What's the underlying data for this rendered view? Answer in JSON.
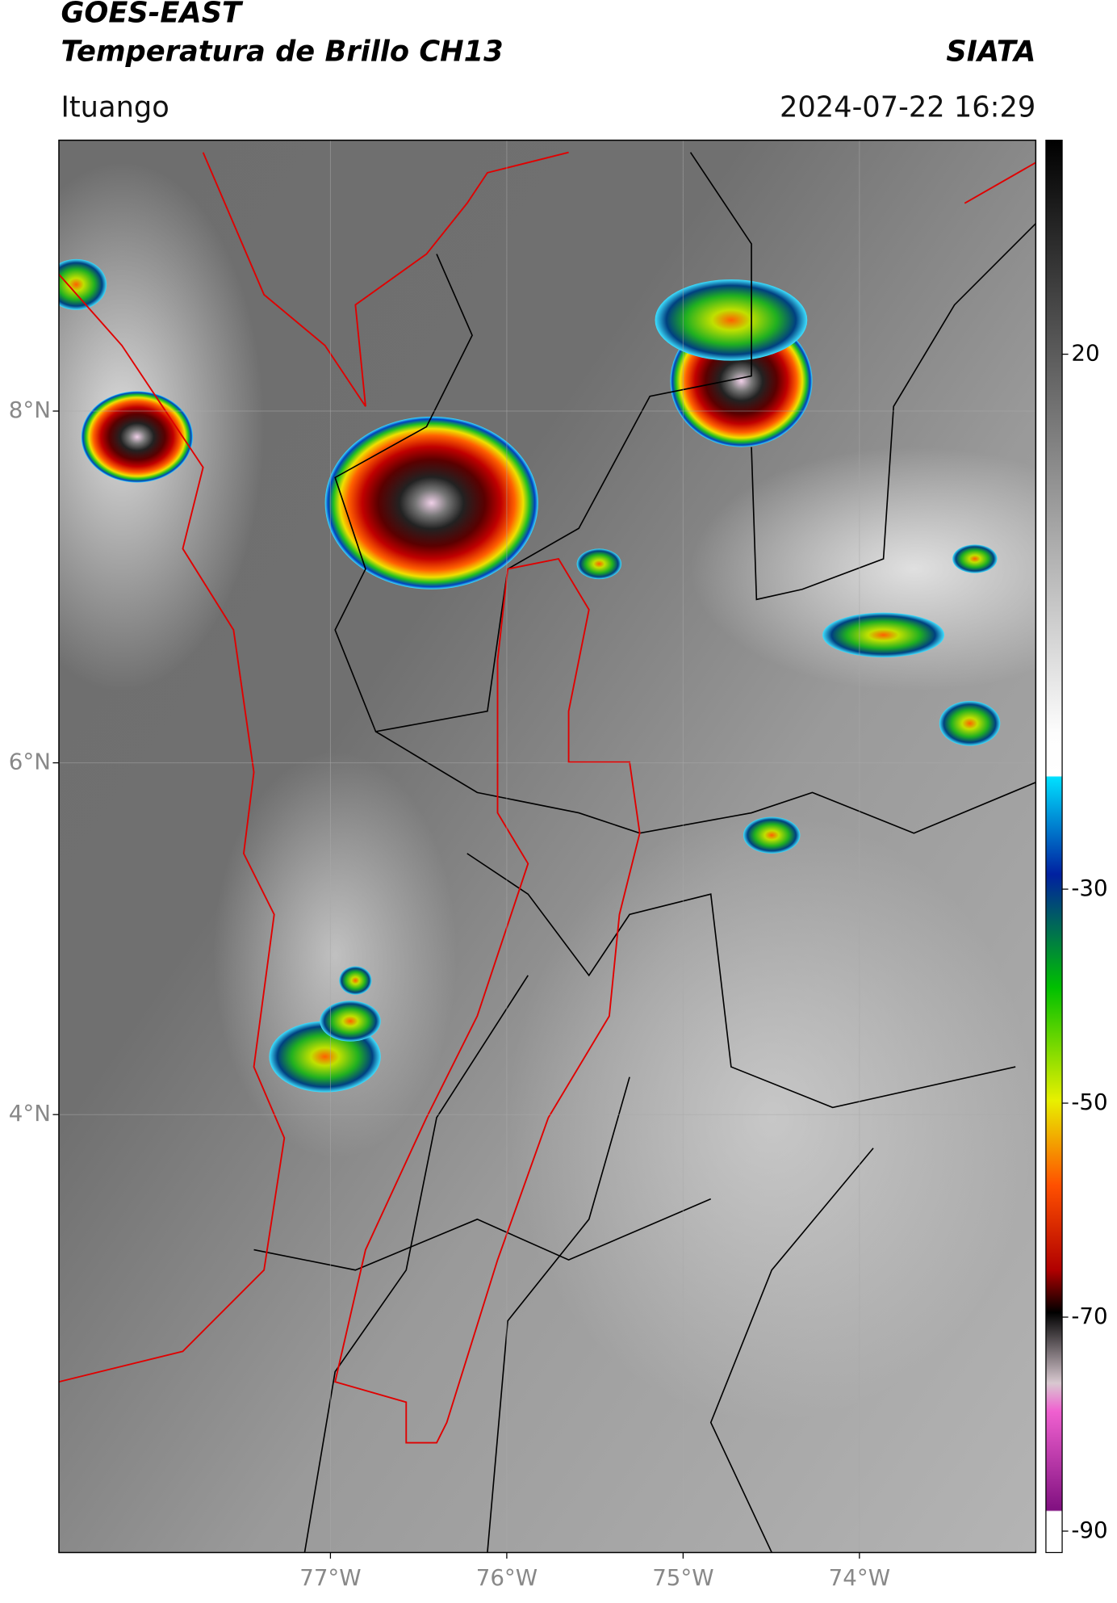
{
  "header": {
    "title": "GOES-EAST",
    "subtitle": "Temperatura de Brillo CH13",
    "brand": "SIATA",
    "location": "Ituango",
    "timestamp": "2024-07-22 16:29"
  },
  "map": {
    "xlim": [
      -78.54,
      -73.0
    ],
    "ylim": [
      1.51,
      9.54
    ],
    "xticks": [
      {
        "value": -77,
        "label": "77°W"
      },
      {
        "value": -76,
        "label": "76°W"
      },
      {
        "value": -75,
        "label": "75°W"
      },
      {
        "value": -74,
        "label": "74°W"
      }
    ],
    "yticks": [
      {
        "value": 8,
        "label": "8°N"
      },
      {
        "value": 6,
        "label": "6°N"
      },
      {
        "value": 4,
        "label": "4°N"
      }
    ]
  },
  "colorbar": {
    "lim": [
      -92,
      40
    ],
    "ticks": [
      20,
      -30,
      -50,
      -70,
      -90
    ]
  }
}
